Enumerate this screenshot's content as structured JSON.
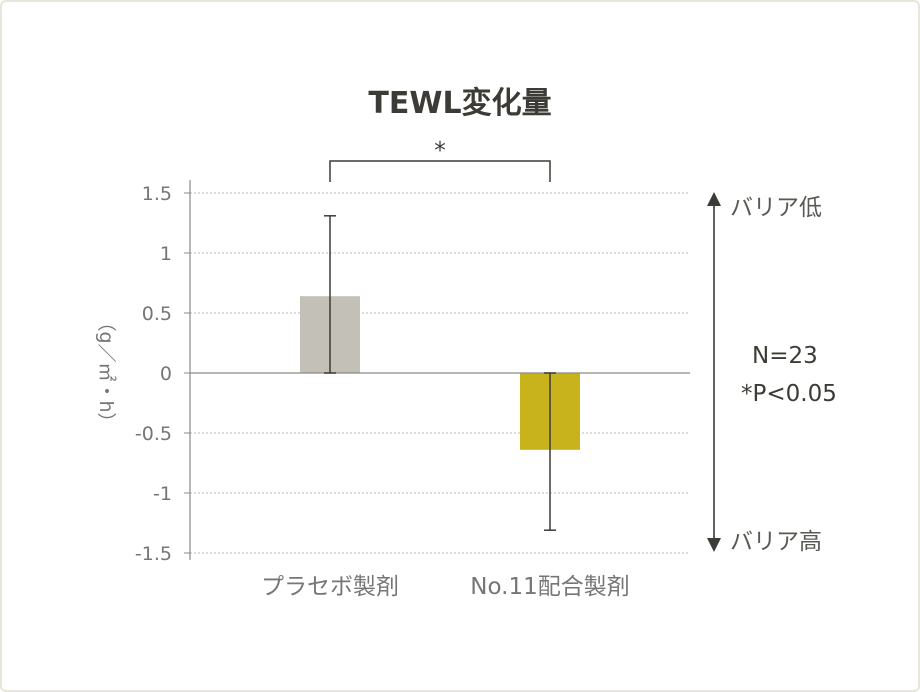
{
  "chart_data": {
    "type": "bar",
    "title": "TEWL変化量",
    "ylabel": "（g／㎡・h）",
    "categories": [
      "プラセボ製剤",
      "No.11配合製剤"
    ],
    "values": [
      0.64,
      -0.64
    ],
    "error_bars": [
      [
        0.0,
        1.31
      ],
      [
        -1.31,
        0.0
      ]
    ],
    "ylim": [
      -1.5,
      1.5
    ],
    "yticks": [
      1.5,
      1,
      0.5,
      0,
      -0.5,
      -1,
      -1.5
    ],
    "ytick_labels": [
      "1.5",
      "1",
      "0.5",
      "0",
      "-0.5",
      "-1",
      "-1.5"
    ],
    "grid": true,
    "bar_colors": [
      "#c3c0b7",
      "#c9b31c"
    ],
    "significance": {
      "label": "*",
      "between": [
        0,
        1
      ]
    },
    "arrow_labels": {
      "top": "バリア低",
      "bottom": "バリア高"
    },
    "annotations": [
      "N=23",
      "*P<0.05"
    ]
  }
}
